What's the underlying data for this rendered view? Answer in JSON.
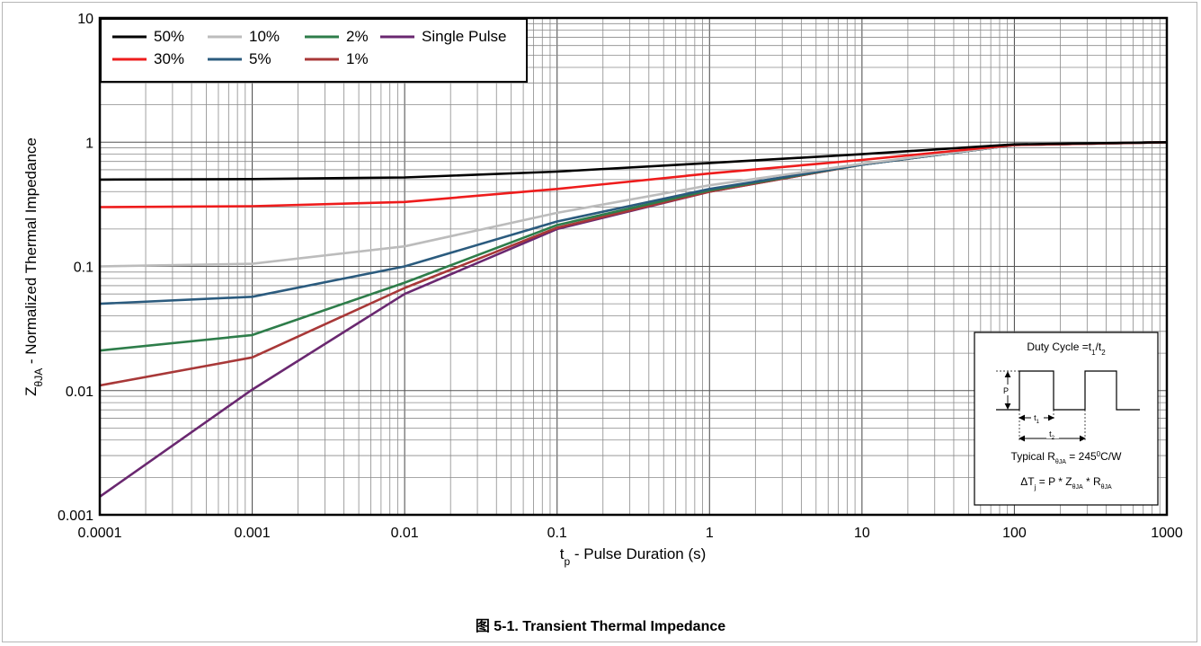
{
  "chart_data": {
    "type": "line",
    "xscale": "log",
    "yscale": "log",
    "xlim": [
      0.0001,
      1000
    ],
    "ylim": [
      0.001,
      10
    ],
    "x_ticks": [
      "0.0001",
      "0.001",
      "0.01",
      "0.1",
      "1",
      "10",
      "100",
      "1000"
    ],
    "y_ticks": [
      "0.001",
      "0.01",
      "0.1",
      "1",
      "10"
    ],
    "xlabel_main": "t",
    "xlabel_sub": "p",
    "xlabel_rest": " - Pulse Duration (s)",
    "ylabel_main": "Z",
    "ylabel_sub": "θJA",
    "ylabel_rest": " - Normalized Thermal Impedance",
    "grid": true,
    "legend_position": "top-left",
    "x": [
      0.0001,
      0.001,
      0.01,
      0.1,
      1,
      10,
      100,
      1000
    ],
    "series": [
      {
        "name": "50%",
        "color": "#000000",
        "values": [
          0.5,
          0.505,
          0.52,
          0.58,
          0.68,
          0.8,
          0.96,
          1.0
        ]
      },
      {
        "name": "30%",
        "color": "#ee1c1c",
        "values": [
          0.3,
          0.305,
          0.33,
          0.42,
          0.56,
          0.72,
          0.95,
          1.0
        ]
      },
      {
        "name": "10%",
        "color": "#bcbcbc",
        "values": [
          0.1,
          0.105,
          0.145,
          0.27,
          0.45,
          0.67,
          0.95,
          1.0
        ]
      },
      {
        "name": "5%",
        "color": "#2b5b7e",
        "values": [
          0.05,
          0.057,
          0.1,
          0.23,
          0.42,
          0.66,
          0.95,
          1.0
        ]
      },
      {
        "name": "2%",
        "color": "#2e7d4a",
        "values": [
          0.021,
          0.028,
          0.074,
          0.215,
          0.41,
          0.66,
          0.95,
          1.0
        ]
      },
      {
        "name": "1%",
        "color": "#a83838",
        "values": [
          0.011,
          0.0185,
          0.067,
          0.205,
          0.4,
          0.66,
          0.95,
          1.0
        ]
      },
      {
        "name": "Single Pulse",
        "color": "#6a2870",
        "values": [
          0.0014,
          0.0102,
          0.06,
          0.2,
          0.4,
          0.66,
          0.95,
          1.0
        ]
      }
    ],
    "legend_order": [
      "50%",
      "10%",
      "2%",
      "Single Pulse",
      "30%",
      "5%",
      "1%"
    ]
  },
  "inset": {
    "title_main": "Duty Cycle =t",
    "title_sub1": "1",
    "title_mid": "/t",
    "title_sub2": "2",
    "p_label": "P",
    "t1_main": "t",
    "t1_sub": "1",
    "t2_main": "t",
    "t2_sub": "2",
    "typ_pre": "Typical R",
    "typ_sub": "θJA",
    "typ_mid": " = 245",
    "typ_sup": "0",
    "typ_post": "C/W",
    "eq_pre": "ΔT",
    "eq_sub1": "j",
    "eq_mid1": " = P * Z",
    "eq_sub2": "θJA",
    "eq_mid2": " * R",
    "eq_sub3": "θJA"
  },
  "caption": "图 5-1. Transient Thermal Impedance"
}
